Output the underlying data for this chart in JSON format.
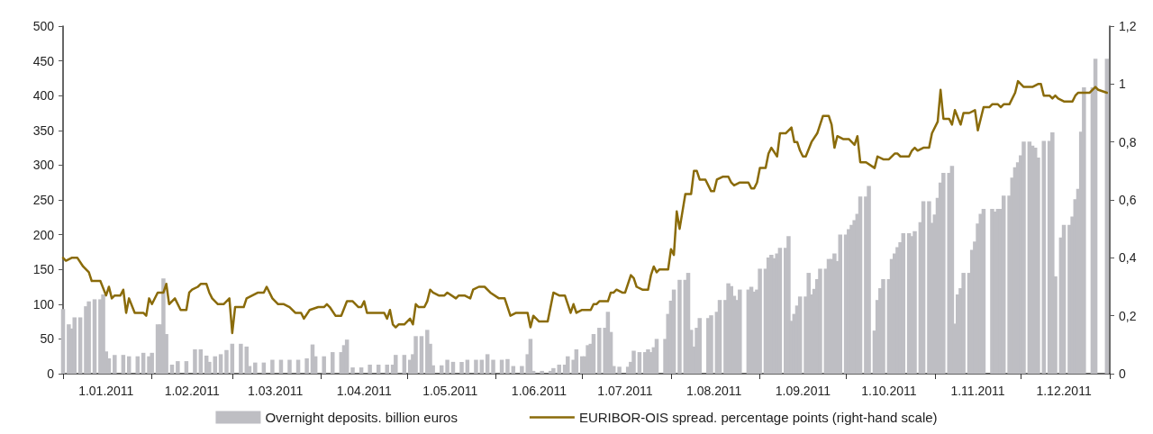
{
  "chart_data": {
    "type": "bar",
    "xlim": [
      "2011-01-01",
      "2012-01-01"
    ],
    "xticks": [
      {
        "value": "2011-01-01",
        "label": null
      },
      {
        "value": "2011-01-16",
        "label": "1.01.2011"
      },
      {
        "value": "2011-02-01",
        "label": null
      },
      {
        "value": "2011-02-15",
        "label": "1.02.2011"
      },
      {
        "value": "2011-03-01",
        "label": null
      },
      {
        "value": "2011-03-16",
        "label": "1.03.2011"
      },
      {
        "value": "2011-04-01",
        "label": null
      },
      {
        "value": "2011-04-16",
        "label": "1.04.2011"
      },
      {
        "value": "2011-05-01",
        "label": null
      },
      {
        "value": "2011-05-16",
        "label": "1.05.2011"
      },
      {
        "value": "2011-06-01",
        "label": null
      },
      {
        "value": "2011-06-16",
        "label": "1.06.2011"
      },
      {
        "value": "2011-07-01",
        "label": null
      },
      {
        "value": "2011-07-16",
        "label": "1.07.2011"
      },
      {
        "value": "2011-08-01",
        "label": null
      },
      {
        "value": "2011-08-16",
        "label": "1.08.2011"
      },
      {
        "value": "2011-09-01",
        "label": null
      },
      {
        "value": "2011-09-16",
        "label": "1.09.2011"
      },
      {
        "value": "2011-10-01",
        "label": null
      },
      {
        "value": "2011-10-16",
        "label": "1.10.2011"
      },
      {
        "value": "2011-11-01",
        "label": null
      },
      {
        "value": "2011-11-16",
        "label": "1.11.2011"
      },
      {
        "value": "2011-12-01",
        "label": null
      },
      {
        "value": "2011-12-16",
        "label": "1.12.2011"
      },
      {
        "value": "2012-01-01",
        "label": null
      }
    ],
    "ylim": [
      0,
      500
    ],
    "yticks": [
      0,
      50,
      100,
      150,
      200,
      250,
      300,
      350,
      400,
      450,
      500
    ],
    "y2lim": [
      0,
      1.2
    ],
    "y2ticks": [
      0,
      {
        "value": 0.2,
        "label": "0,2"
      },
      {
        "value": 0.4,
        "label": "0,4"
      },
      {
        "value": 0.6,
        "label": "0,6"
      },
      {
        "value": 0.8,
        "label": "0,8"
      },
      1,
      {
        "value": 1.2,
        "label": "1,2"
      }
    ],
    "legend": "bottom",
    "grid": false,
    "marker": "none",
    "line_style": "solid",
    "series": [
      {
        "name": "Overnight deposits. billion euros",
        "color": "#bebec3",
        "x": [
          "2011-01-01",
          "2011-01-03",
          "2011-01-04",
          "2011-01-05",
          "2011-01-07",
          "2011-01-09",
          "2011-01-10",
          "2011-01-12",
          "2011-01-14",
          "2011-01-15",
          "2011-01-16",
          "2011-01-17",
          "2011-01-19",
          "2011-01-22",
          "2011-01-24",
          "2011-01-27",
          "2011-01-29",
          "2011-01-31",
          "2011-02-01",
          "2011-02-03",
          "2011-02-04",
          "2011-02-05",
          "2011-02-06",
          "2011-02-08",
          "2011-02-10",
          "2011-02-13",
          "2011-02-16",
          "2011-02-18",
          "2011-02-20",
          "2011-02-21",
          "2011-02-23",
          "2011-02-25",
          "2011-02-27",
          "2011-03-01",
          "2011-03-04",
          "2011-03-06",
          "2011-03-07",
          "2011-03-09",
          "2011-03-12",
          "2011-03-15",
          "2011-03-18",
          "2011-03-21",
          "2011-03-24",
          "2011-03-27",
          "2011-03-29",
          "2011-03-30",
          "2011-04-02",
          "2011-04-05",
          "2011-04-08",
          "2011-04-09",
          "2011-04-10",
          "2011-04-12",
          "2011-04-15",
          "2011-04-18",
          "2011-04-21",
          "2011-04-24",
          "2011-04-26",
          "2011-04-27",
          "2011-04-30",
          "2011-05-02",
          "2011-05-03",
          "2011-05-04",
          "2011-05-06",
          "2011-05-08",
          "2011-05-09",
          "2011-05-10",
          "2011-05-13",
          "2011-05-15",
          "2011-05-17",
          "2011-05-20",
          "2011-05-22",
          "2011-05-25",
          "2011-05-27",
          "2011-05-29",
          "2011-05-31",
          "2011-06-03",
          "2011-06-05",
          "2011-06-07",
          "2011-06-10",
          "2011-06-12",
          "2011-06-13",
          "2011-06-14",
          "2011-06-17",
          "2011-06-20",
          "2011-06-21",
          "2011-06-23",
          "2011-06-25",
          "2011-06-26",
          "2011-06-28",
          "2011-06-29",
          "2011-07-01",
          "2011-07-02",
          "2011-07-03",
          "2011-07-04",
          "2011-07-05",
          "2011-07-07",
          "2011-07-09",
          "2011-07-10",
          "2011-07-11",
          "2011-07-12",
          "2011-07-14",
          "2011-07-17",
          "2011-07-18",
          "2011-07-19",
          "2011-07-21",
          "2011-07-23",
          "2011-07-24",
          "2011-07-25",
          "2011-07-26",
          "2011-07-27",
          "2011-07-30",
          "2011-07-31",
          "2011-08-01",
          "2011-08-02",
          "2011-08-04",
          "2011-08-06",
          "2011-08-07",
          "2011-08-08",
          "2011-08-09",
          "2011-08-10",
          "2011-08-11",
          "2011-08-14",
          "2011-08-15",
          "2011-08-17",
          "2011-08-18",
          "2011-08-20",
          "2011-08-21",
          "2011-08-22",
          "2011-08-23",
          "2011-08-24",
          "2011-08-25",
          "2011-08-28",
          "2011-08-29",
          "2011-08-30",
          "2011-08-31",
          "2011-09-01",
          "2011-09-03",
          "2011-09-04",
          "2011-09-05",
          "2011-09-06",
          "2011-09-07",
          "2011-09-08",
          "2011-09-10",
          "2011-09-11",
          "2011-09-12",
          "2011-09-13",
          "2011-09-14",
          "2011-09-15",
          "2011-09-17",
          "2011-09-18",
          "2011-09-19",
          "2011-09-20",
          "2011-09-21",
          "2011-09-22",
          "2011-09-24",
          "2011-09-25",
          "2011-09-26",
          "2011-09-27",
          "2011-09-28",
          "2011-09-29",
          "2011-10-01",
          "2011-10-02",
          "2011-10-03",
          "2011-10-04",
          "2011-10-05",
          "2011-10-06",
          "2011-10-08",
          "2011-10-09",
          "2011-10-11",
          "2011-10-12",
          "2011-10-13",
          "2011-10-14",
          "2011-10-16",
          "2011-10-17",
          "2011-10-18",
          "2011-10-19",
          "2011-10-20",
          "2011-10-21",
          "2011-10-23",
          "2011-10-24",
          "2011-10-25",
          "2011-10-27",
          "2011-10-28",
          "2011-10-30",
          "2011-10-31",
          "2011-11-01",
          "2011-11-02",
          "2011-11-03",
          "2011-11-04",
          "2011-11-06",
          "2011-11-07",
          "2011-11-08",
          "2011-11-09",
          "2011-11-10",
          "2011-11-11",
          "2011-11-13",
          "2011-11-14",
          "2011-11-15",
          "2011-11-16",
          "2011-11-17",
          "2011-11-18",
          "2011-11-21",
          "2011-11-22",
          "2011-11-23",
          "2011-11-24",
          "2011-11-25",
          "2011-11-27",
          "2011-11-28",
          "2011-11-29",
          "2011-11-30",
          "2011-12-01",
          "2011-12-02",
          "2011-12-04",
          "2011-12-05",
          "2011-12-06",
          "2011-12-07",
          "2011-12-09",
          "2011-12-11",
          "2011-12-12",
          "2011-12-13",
          "2011-12-15",
          "2011-12-16",
          "2011-12-18",
          "2011-12-19",
          "2011-12-20",
          "2011-12-21",
          "2011-12-22",
          "2011-12-23",
          "2011-12-26",
          "2011-12-27",
          "2011-12-31"
        ],
        "values": [
          93,
          71,
          65,
          81,
          81,
          97,
          104,
          107,
          107,
          114,
          32,
          22,
          27,
          27,
          25,
          25,
          30,
          25,
          30,
          71,
          71,
          137,
          57,
          13,
          18,
          18,
          35,
          35,
          26,
          17,
          25,
          28,
          34,
          43,
          43,
          39,
          11,
          16,
          16,
          20,
          20,
          20,
          20,
          22,
          42,
          25,
          25,
          31,
          31,
          41,
          49,
          9,
          9,
          13,
          13,
          13,
          13,
          27,
          27,
          20,
          28,
          54,
          54,
          63,
          43,
          12,
          12,
          20,
          17,
          17,
          20,
          20,
          20,
          28,
          20,
          20,
          21,
          11,
          11,
          28,
          50,
          4,
          4,
          4,
          8,
          13,
          13,
          25,
          20,
          35,
          25,
          25,
          41,
          43,
          57,
          66,
          66,
          89,
          60,
          11,
          10,
          10,
          17,
          33,
          31,
          31,
          35,
          31,
          38,
          50,
          50,
          86,
          105,
          121,
          135,
          135,
          145,
          63,
          39,
          66,
          80,
          80,
          84,
          89,
          106,
          106,
          130,
          126,
          112,
          106,
          121,
          121,
          125,
          118,
          121,
          151,
          151,
          167,
          171,
          166,
          173,
          181,
          181,
          198,
          76,
          86,
          98,
          111,
          111,
          145,
          114,
          122,
          136,
          151,
          151,
          165,
          165,
          173,
          162,
          200,
          200,
          208,
          214,
          221,
          230,
          255,
          255,
          270,
          62,
          106,
          123,
          136,
          136,
          165,
          173,
          182,
          189,
          202,
          202,
          198,
          205,
          218,
          248,
          248,
          217,
          229,
          253,
          275,
          289,
          289,
          299,
          72,
          114,
          123,
          145,
          145,
          178,
          190,
          216,
          230,
          237,
          237,
          233,
          237,
          237,
          256,
          256,
          282,
          297,
          304,
          314,
          334,
          334,
          328,
          325,
          311,
          335,
          335,
          347,
          140,
          196,
          214,
          214,
          226,
          251,
          266,
          348,
          412,
          412,
          453,
          453
        ]
      },
      {
        "type": "line",
        "axis": "y2",
        "name": "EURIBOR-OIS spread. percentage points (right-hand scale)",
        "color": "#8a6b0a",
        "x": [
          "2011-01-01",
          "2011-01-02",
          "2011-01-04",
          "2011-01-06",
          "2011-01-08",
          "2011-01-10",
          "2011-01-11",
          "2011-01-14",
          "2011-01-16",
          "2011-01-17",
          "2011-01-18",
          "2011-01-19",
          "2011-01-21",
          "2011-01-22",
          "2011-01-23",
          "2011-01-24",
          "2011-01-26",
          "2011-01-29",
          "2011-01-30",
          "2011-01-31",
          "2011-02-01",
          "2011-02-03",
          "2011-02-05",
          "2011-02-06",
          "2011-02-07",
          "2011-02-09",
          "2011-02-11",
          "2011-02-13",
          "2011-02-14",
          "2011-02-15",
          "2011-02-17",
          "2011-02-18",
          "2011-02-20",
          "2011-02-21",
          "2011-02-22",
          "2011-02-24",
          "2011-02-26",
          "2011-02-28",
          "2011-03-01",
          "2011-03-02",
          "2011-03-05",
          "2011-03-06",
          "2011-03-10",
          "2011-03-12",
          "2011-03-13",
          "2011-03-15",
          "2011-03-17",
          "2011-03-19",
          "2011-03-21",
          "2011-03-23",
          "2011-03-25",
          "2011-03-26",
          "2011-03-28",
          "2011-03-31",
          "2011-04-02",
          "2011-04-03",
          "2011-04-04",
          "2011-04-06",
          "2011-04-08",
          "2011-04-10",
          "2011-04-12",
          "2011-04-14",
          "2011-04-15",
          "2011-04-16",
          "2011-04-17",
          "2011-04-19",
          "2011-04-23",
          "2011-04-24",
          "2011-04-25",
          "2011-04-26",
          "2011-04-27",
          "2011-04-28",
          "2011-04-30",
          "2011-05-02",
          "2011-05-03",
          "2011-05-04",
          "2011-05-05",
          "2011-05-07",
          "2011-05-08",
          "2011-05-09",
          "2011-05-10",
          "2011-05-12",
          "2011-05-14",
          "2011-05-15",
          "2011-05-18",
          "2011-05-19",
          "2011-05-21",
          "2011-05-23",
          "2011-05-24",
          "2011-05-26",
          "2011-05-28",
          "2011-05-30",
          "2011-06-02",
          "2011-06-04",
          "2011-06-06",
          "2011-06-08",
          "2011-06-12",
          "2011-06-13",
          "2011-06-14",
          "2011-06-16",
          "2011-06-19",
          "2011-06-21",
          "2011-06-23",
          "2011-06-25",
          "2011-06-27",
          "2011-06-28",
          "2011-06-29",
          "2011-07-01",
          "2011-07-04",
          "2011-07-05",
          "2011-07-06",
          "2011-07-07",
          "2011-07-10",
          "2011-07-11",
          "2011-07-12",
          "2011-07-13",
          "2011-07-15",
          "2011-07-16",
          "2011-07-18",
          "2011-07-19",
          "2011-07-20",
          "2011-07-22",
          "2011-07-24",
          "2011-07-25",
          "2011-07-26",
          "2011-07-27",
          "2011-07-28",
          "2011-07-31",
          "2011-08-01",
          "2011-08-02",
          "2011-08-03",
          "2011-08-04",
          "2011-08-06",
          "2011-08-08",
          "2011-08-09",
          "2011-08-10",
          "2011-08-11",
          "2011-08-13",
          "2011-08-15",
          "2011-08-16",
          "2011-08-17",
          "2011-08-19",
          "2011-08-21",
          "2011-08-22",
          "2011-08-23",
          "2011-08-25",
          "2011-08-28",
          "2011-08-29",
          "2011-08-30",
          "2011-08-31",
          "2011-09-01",
          "2011-09-03",
          "2011-09-04",
          "2011-09-05",
          "2011-09-07",
          "2011-09-08",
          "2011-09-10",
          "2011-09-12",
          "2011-09-13",
          "2011-09-14",
          "2011-09-15",
          "2011-09-16",
          "2011-09-17",
          "2011-09-19",
          "2011-09-21",
          "2011-09-23",
          "2011-09-25",
          "2011-09-26",
          "2011-09-27",
          "2011-09-28",
          "2011-09-30",
          "2011-10-02",
          "2011-10-04",
          "2011-10-05",
          "2011-10-06",
          "2011-10-08",
          "2011-10-11",
          "2011-10-12",
          "2011-10-14",
          "2011-10-16",
          "2011-10-18",
          "2011-10-19",
          "2011-10-20",
          "2011-10-23",
          "2011-10-24",
          "2011-10-25",
          "2011-10-26",
          "2011-10-28",
          "2011-10-30",
          "2011-10-31",
          "2011-11-02",
          "2011-11-03",
          "2011-11-04",
          "2011-11-06",
          "2011-11-07",
          "2011-11-08",
          "2011-11-10",
          "2011-11-11",
          "2011-11-13",
          "2011-11-15",
          "2011-11-16",
          "2011-11-18",
          "2011-11-20",
          "2011-11-21",
          "2011-11-23",
          "2011-11-24",
          "2011-11-25",
          "2011-11-27",
          "2011-11-29",
          "2011-11-30",
          "2011-12-02",
          "2011-12-05",
          "2011-12-07",
          "2011-12-08",
          "2011-12-09",
          "2011-12-11",
          "2011-12-12",
          "2011-12-13",
          "2011-12-14",
          "2011-12-16",
          "2011-12-19",
          "2011-12-20",
          "2011-12-21",
          "2011-12-25",
          "2011-12-27",
          "2011-12-28",
          "2011-12-31"
        ],
        "values": [
          0.4,
          0.39,
          0.4,
          0.4,
          0.37,
          0.35,
          0.32,
          0.32,
          0.27,
          0.3,
          0.26,
          0.27,
          0.27,
          0.29,
          0.21,
          0.26,
          0.21,
          0.21,
          0.2,
          0.26,
          0.24,
          0.28,
          0.28,
          0.31,
          0.24,
          0.26,
          0.22,
          0.22,
          0.28,
          0.29,
          0.3,
          0.31,
          0.31,
          0.28,
          0.26,
          0.24,
          0.24,
          0.26,
          0.14,
          0.23,
          0.23,
          0.26,
          0.28,
          0.28,
          0.3,
          0.26,
          0.24,
          0.24,
          0.23,
          0.21,
          0.21,
          0.19,
          0.22,
          0.23,
          0.23,
          0.24,
          0.23,
          0.2,
          0.2,
          0.25,
          0.25,
          0.23,
          0.23,
          0.25,
          0.21,
          0.21,
          0.21,
          0.19,
          0.22,
          0.17,
          0.16,
          0.17,
          0.17,
          0.19,
          0.17,
          0.24,
          0.23,
          0.23,
          0.25,
          0.29,
          0.28,
          0.27,
          0.27,
          0.28,
          0.26,
          0.27,
          0.27,
          0.26,
          0.29,
          0.3,
          0.3,
          0.28,
          0.26,
          0.26,
          0.2,
          0.21,
          0.21,
          0.16,
          0.2,
          0.18,
          0.18,
          0.28,
          0.27,
          0.27,
          0.21,
          0.24,
          0.21,
          0.22,
          0.22,
          0.24,
          0.24,
          0.25,
          0.25,
          0.28,
          0.28,
          0.29,
          0.28,
          0.28,
          0.34,
          0.33,
          0.3,
          0.29,
          0.29,
          0.34,
          0.37,
          0.35,
          0.36,
          0.36,
          0.43,
          0.41,
          0.56,
          0.5,
          0.62,
          0.62,
          0.7,
          0.7,
          0.67,
          0.67,
          0.63,
          0.63,
          0.67,
          0.68,
          0.68,
          0.66,
          0.65,
          0.66,
          0.66,
          0.64,
          0.64,
          0.66,
          0.71,
          0.71,
          0.76,
          0.78,
          0.75,
          0.83,
          0.83,
          0.85,
          0.8,
          0.8,
          0.77,
          0.75,
          0.75,
          0.8,
          0.83,
          0.89,
          0.89,
          0.86,
          0.78,
          0.82,
          0.81,
          0.81,
          0.79,
          0.82,
          0.73,
          0.73,
          0.71,
          0.75,
          0.74,
          0.74,
          0.76,
          0.76,
          0.75,
          0.75,
          0.77,
          0.78,
          0.77,
          0.78,
          0.78,
          0.83,
          0.87,
          0.98,
          0.88,
          0.88,
          0.86,
          0.91,
          0.86,
          0.9,
          0.9,
          0.91,
          0.84,
          0.92,
          0.92,
          0.93,
          0.93,
          0.92,
          0.93,
          0.93,
          0.97,
          1.01,
          0.99,
          0.99,
          1,
          1,
          0.96,
          0.96,
          0.95,
          0.96,
          0.95,
          0.94,
          0.94,
          0.96,
          0.97,
          0.97,
          0.99,
          0.98,
          0.97
        ]
      }
    ]
  }
}
